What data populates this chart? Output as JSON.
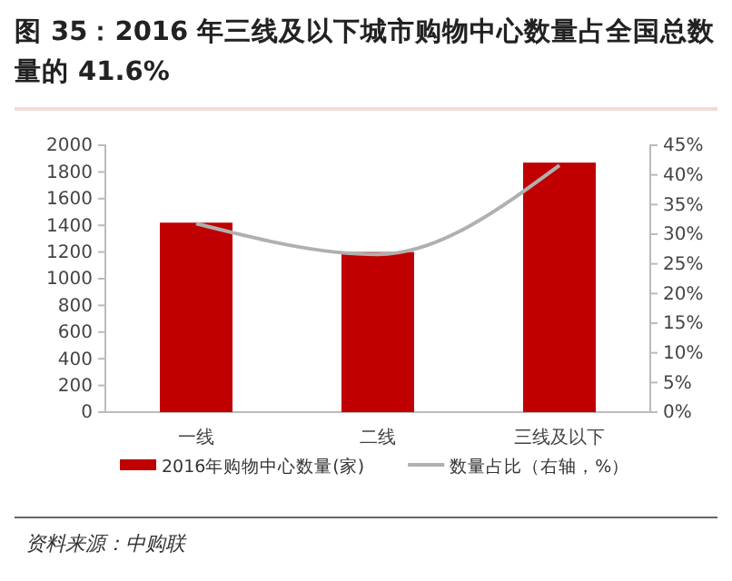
{
  "chart_data": {
    "type": "bar",
    "title": "图 35：2016 年三线及以下城市购物中心数量占全国总数量的 41.6%",
    "categories": [
      "一线",
      "二线",
      "三线及以下"
    ],
    "series": [
      {
        "name": "2016年购物中心数量(家)",
        "color": "#c00000",
        "values": [
          1420,
          1200,
          1870
        ]
      },
      {
        "name": "数量占比（右轴，%）",
        "type": "line",
        "axis": "y2",
        "color": "#b0b0b0",
        "values": [
          31.8,
          26.6,
          41.6
        ]
      }
    ],
    "ylim": [
      0,
      2000
    ],
    "yticks": [
      0,
      200,
      400,
      600,
      800,
      1000,
      1200,
      1400,
      1600,
      1800,
      2000
    ],
    "y2lim": [
      0,
      45
    ],
    "y2ticks": [
      {
        "value": 0,
        "label": "0%"
      },
      {
        "value": 5,
        "label": "5%"
      },
      {
        "value": 10,
        "label": "10%"
      },
      {
        "value": 15,
        "label": "15%"
      },
      {
        "value": 20,
        "label": "20%"
      },
      {
        "value": 25,
        "label": "25%"
      },
      {
        "value": 30,
        "label": "30%"
      },
      {
        "value": 35,
        "label": "35%"
      },
      {
        "value": 40,
        "label": "40%"
      },
      {
        "value": 45,
        "label": "45%"
      }
    ],
    "legend": "bottom",
    "marker": "none",
    "grid": false,
    "annotations": [
      "资料来源：中购联"
    ]
  }
}
